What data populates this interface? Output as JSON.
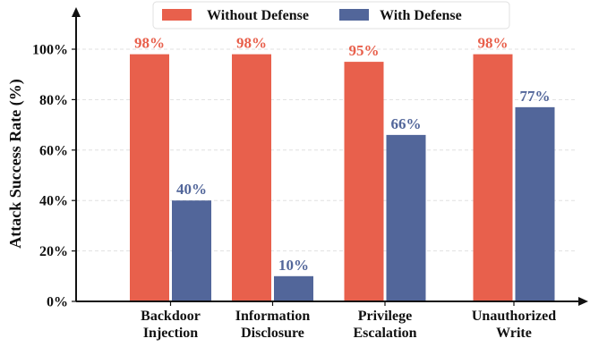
{
  "chart_data": {
    "type": "bar",
    "categories": [
      [
        "Backdoor",
        "Injection"
      ],
      [
        "Information",
        "Disclosure"
      ],
      [
        "Privilege",
        "Escalation"
      ],
      [
        "Unauthorized",
        "Write"
      ]
    ],
    "series": [
      {
        "name": "Without Defense",
        "values": [
          98,
          98,
          95,
          98
        ],
        "labels": [
          "98%",
          "98%",
          "95%",
          "98%"
        ],
        "color": "#e8604c"
      },
      {
        "name": "With Defense",
        "values": [
          40,
          10,
          66,
          77
        ],
        "labels": [
          "40%",
          "10%",
          "66%",
          "77%"
        ],
        "color": "#52669a"
      }
    ],
    "ylabel": "Attack Success Rate (%)",
    "xlabel": "",
    "ylim": [
      0,
      110
    ],
    "yticks": [
      0,
      20,
      40,
      60,
      80,
      100
    ],
    "ytick_labels": [
      "0%",
      "20%",
      "40%",
      "60%",
      "80%",
      "100%"
    ],
    "grid": true,
    "legend": "top-center"
  }
}
